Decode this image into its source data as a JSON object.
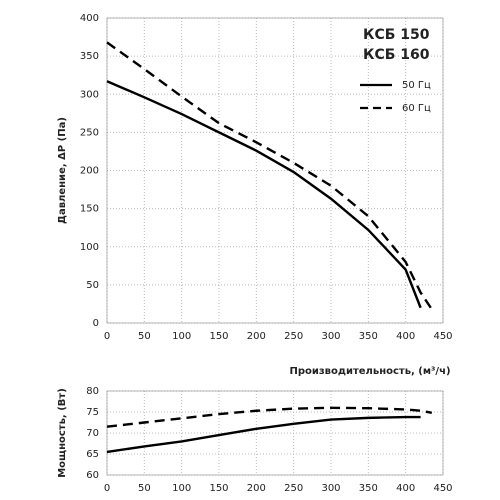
{
  "chart_data": [
    {
      "type": "line",
      "ylabel": "Давление, ΔP (Па)",
      "xlabel": "Производительность, (м³/ч)",
      "annotations": [
        "КСБ 150",
        "КСБ 160"
      ],
      "x": [
        0,
        50,
        100,
        150,
        200,
        250,
        300,
        350,
        400,
        420,
        435
      ],
      "series": [
        {
          "name": "50 Гц",
          "color": "#000000",
          "dashed": false,
          "values": [
            317,
            296,
            274,
            250,
            226,
            198,
            163,
            122,
            70,
            20,
            null
          ]
        },
        {
          "name": "60 Гц",
          "color": "#000000",
          "dashed": true,
          "values": [
            368,
            333,
            297,
            262,
            237,
            210,
            180,
            140,
            80,
            40,
            18
          ]
        }
      ],
      "xlim": [
        0,
        450
      ],
      "xticks": [
        0,
        50,
        100,
        150,
        200,
        250,
        300,
        350,
        400,
        450
      ],
      "ylim": [
        0,
        400
      ],
      "yticks": [
        0,
        50,
        100,
        150,
        200,
        250,
        300,
        350,
        400
      ],
      "grid": true
    },
    {
      "type": "line",
      "ylabel": "Мощность, (Вт)",
      "x": [
        0,
        50,
        100,
        150,
        200,
        250,
        300,
        350,
        400,
        420,
        435
      ],
      "series": [
        {
          "color": "#000000",
          "dashed": false,
          "values": [
            65.5,
            66.8,
            68,
            69.5,
            71,
            72.2,
            73.2,
            73.6,
            73.8,
            73.8,
            null
          ]
        },
        {
          "color": "#000000",
          "dashed": true,
          "values": [
            71.5,
            72.5,
            73.5,
            74.5,
            75.3,
            75.8,
            76,
            75.9,
            75.6,
            75.3,
            74.8
          ]
        }
      ],
      "xlim": [
        0,
        450
      ],
      "xticks": [
        0,
        50,
        100,
        150,
        200,
        250,
        300,
        350,
        400,
        450
      ],
      "ylim": [
        60,
        80
      ],
      "yticks": [
        60,
        65,
        70,
        75,
        80
      ],
      "grid": true
    }
  ]
}
